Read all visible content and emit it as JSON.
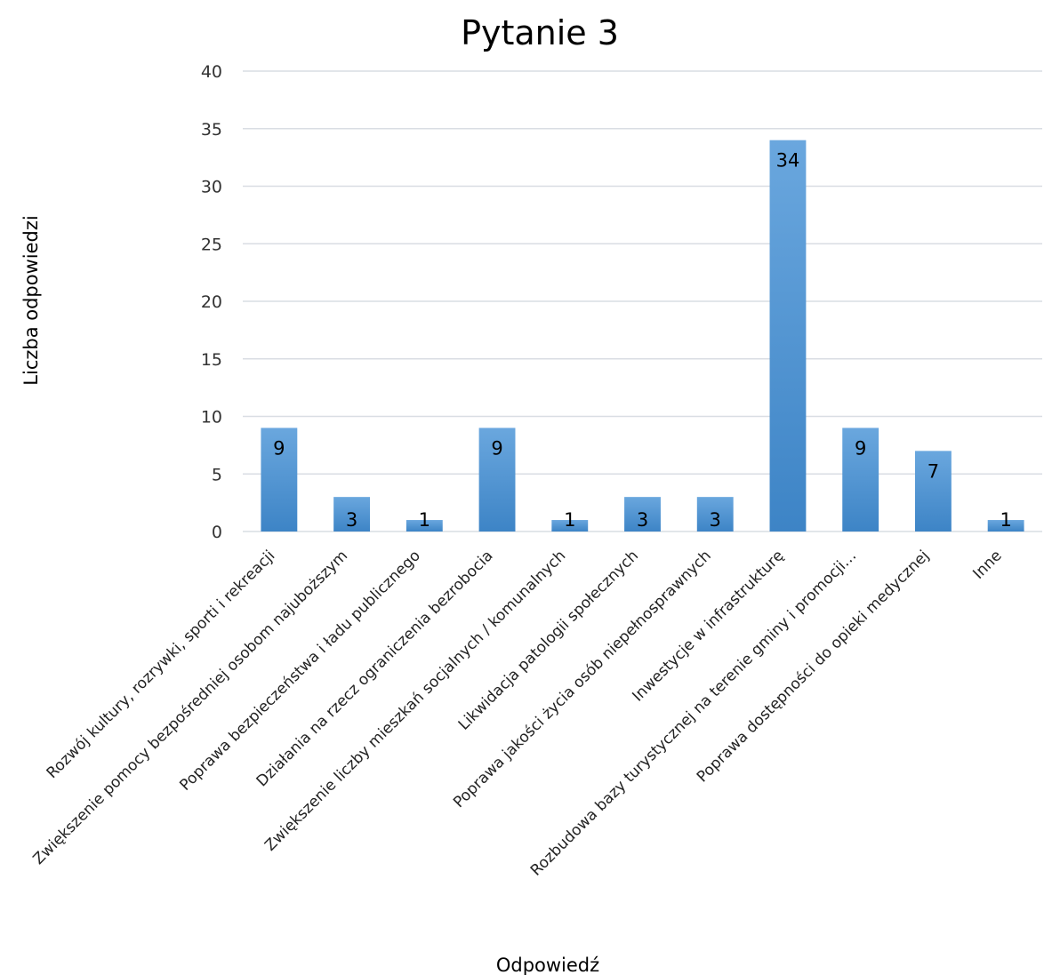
{
  "chart_data": {
    "type": "bar",
    "title": "Pytanie 3",
    "xlabel": "Odpowiedź",
    "ylabel": "Liczba odpowiedzi",
    "ylim": [
      0,
      40
    ],
    "yticks": [
      0,
      5,
      10,
      15,
      20,
      25,
      30,
      35,
      40
    ],
    "grid": true,
    "legend": "none",
    "bar_color": "#5b9bd5",
    "categories": [
      "Rozwój kultury, rozrywki, sporti i rekreacji",
      "Zwiększenie pomocy bezpośredniej osobom najuboższym",
      "Poprawa bezpieczeństwa i ładu publicznego",
      "Działania na rzecz ograniczenia bezrobocia",
      "Zwiększenie liczby mieszkań socjalnych / komunalnych",
      "Likwidacja patologii społecznych",
      "Poprawa jakości życia osób niepełnosprawnych",
      "Inwestycje w infrastrukturę",
      "Rozbudowa bazy turystycznej na terenie gminy i promocji…",
      "Poprawa dostępności do opieki medycznej",
      "Inne"
    ],
    "values": [
      9,
      3,
      1,
      9,
      1,
      3,
      3,
      34,
      9,
      7,
      1
    ]
  }
}
